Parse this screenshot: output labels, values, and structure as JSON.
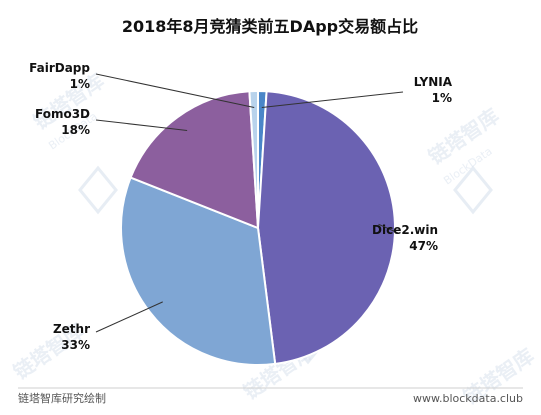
{
  "chart_data": {
    "type": "pie",
    "title": "2018年8月竞猜类前五DApp交易额占比",
    "categories": [
      "LYNIA",
      "Dice2.win",
      "Zethr",
      "Fomo3D",
      "FairDapp"
    ],
    "values": [
      1,
      47,
      33,
      18,
      1
    ],
    "value_labels": [
      "1%",
      "47%",
      "33%",
      "18%",
      "1%"
    ],
    "colors": [
      "#4a86c8",
      "#6b62b2",
      "#7fa6d4",
      "#8c5f9e",
      "#b8d3ec"
    ],
    "start_angle_deg": 0,
    "direction": "clockwise",
    "grid": false,
    "legend": "none"
  },
  "footer": {
    "left": "链塔智库研究绘制",
    "right": "www.blockdata.club"
  },
  "watermark": {
    "text": "链塔智库",
    "text_en": "BlockData"
  }
}
